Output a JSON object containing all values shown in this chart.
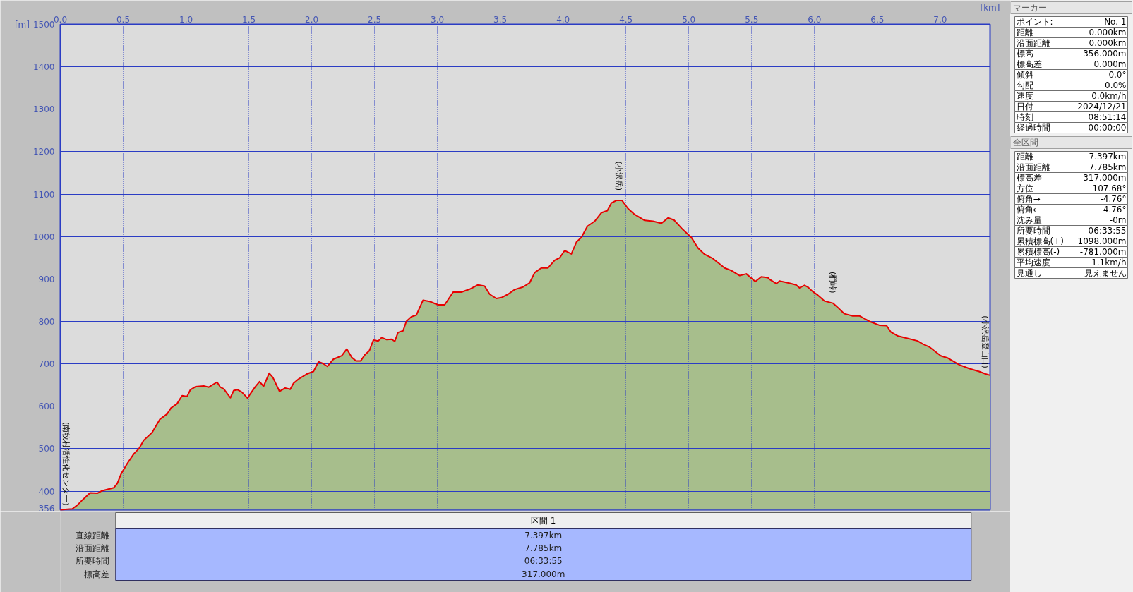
{
  "chart_data": [
    {
      "type": "area",
      "xlabel": "[km]",
      "ylabel": "[m]",
      "line_style": "solid",
      "grid": true,
      "xlim": [
        0,
        7.397
      ],
      "ylim": [
        356,
        1500
      ],
      "xticks": [
        {
          "value": 0,
          "label": "0.0"
        },
        0.5,
        {
          "value": 1,
          "label": "1.0"
        },
        1.5,
        {
          "value": 2,
          "label": "2.0"
        },
        2.5,
        {
          "value": 3,
          "label": "3.0"
        },
        3.5,
        {
          "value": 4,
          "label": "4.0"
        },
        4.5,
        {
          "value": 5,
          "label": "5.0"
        },
        5.5,
        {
          "value": 6,
          "label": "6.0"
        },
        6.5,
        {
          "value": 7,
          "label": "7.0"
        }
      ],
      "yticks": [
        356,
        400,
        500,
        600,
        700,
        800,
        900,
        1000,
        1100,
        1200,
        1300,
        1400,
        1500
      ],
      "x": [
        0,
        0.095,
        0.135,
        0.175,
        0.236,
        0.294,
        0.333,
        0.426,
        0.453,
        0.484,
        0.532,
        0.585,
        0.625,
        0.664,
        0.73,
        0.791,
        0.85,
        0.881,
        0.929,
        0.969,
        1.008,
        1.035,
        1.075,
        1.141,
        1.181,
        1.247,
        1.273,
        1.3,
        1.353,
        1.379,
        1.411,
        1.445,
        1.49,
        1.511,
        1.551,
        1.585,
        1.617,
        1.662,
        1.691,
        1.744,
        1.789,
        1.829,
        1.855,
        1.895,
        1.961,
        2.014,
        2.054,
        2.088,
        2.125,
        2.173,
        2.239,
        2.279,
        2.319,
        2.353,
        2.39,
        2.425,
        2.459,
        2.491,
        2.53,
        2.557,
        2.597,
        2.636,
        2.661,
        2.687,
        2.727,
        2.753,
        2.793,
        2.833,
        2.886,
        2.939,
        3.005,
        3.058,
        3.125,
        3.191,
        3.257,
        3.323,
        3.376,
        3.416,
        3.469,
        3.509,
        3.562,
        3.615,
        3.681,
        3.734,
        3.774,
        3.827,
        3.88,
        3.933,
        3.973,
        4.013,
        4.066,
        4.106,
        4.145,
        4.193,
        4.251,
        4.304,
        4.352,
        4.384,
        4.424,
        4.469,
        4.516,
        4.569,
        4.649,
        4.715,
        4.782,
        4.835,
        4.882,
        4.954,
        5.02,
        5.073,
        5.126,
        5.192,
        5.285,
        5.338,
        5.405,
        5.458,
        5.529,
        5.577,
        5.63,
        5.643,
        5.696,
        5.722,
        5.788,
        5.854,
        5.881,
        5.921,
        5.947,
        5.987,
        6.026,
        6.079,
        6.146,
        6.185,
        6.238,
        6.304,
        6.357,
        6.437,
        6.516,
        6.574,
        6.608,
        6.661,
        6.728,
        6.82,
        6.86,
        6.913,
        6.952,
        7.005,
        7.058,
        7.151,
        7.23,
        7.31,
        7.362,
        7.397
      ],
      "series": [
        {
          "color": "#a7be8c",
          "values": [
            356,
            358,
            367,
            379,
            396,
            395,
            401,
            408,
            418,
            441,
            465,
            488,
            500,
            520,
            538,
            569,
            582,
            596,
            606,
            625,
            623,
            639,
            646,
            648,
            645,
            657,
            645,
            641,
            620,
            637,
            639,
            633,
            619,
            629,
            646,
            658,
            647,
            678,
            668,
            635,
            643,
            640,
            654,
            664,
            676,
            682,
            705,
            701,
            694,
            711,
            719,
            735,
            715,
            707,
            707,
            722,
            731,
            756,
            754,
            762,
            757,
            758,
            753,
            774,
            778,
            800,
            811,
            815,
            850,
            847,
            839,
            839,
            869,
            869,
            876,
            886,
            883,
            864,
            854,
            856,
            864,
            875,
            881,
            891,
            915,
            926,
            926,
            944,
            950,
            967,
            959,
            987,
            998,
            1024,
            1036,
            1056,
            1061,
            1079,
            1085,
            1085,
            1066,
            1052,
            1038,
            1036,
            1031,
            1044,
            1039,
            1016,
            998,
            973,
            958,
            948,
            926,
            920,
            908,
            912,
            894,
            905,
            903,
            899,
            889,
            895,
            891,
            886,
            879,
            885,
            881,
            870,
            862,
            848,
            843,
            833,
            818,
            813,
            813,
            800,
            791,
            790,
            775,
            766,
            761,
            754,
            747,
            740,
            731,
            719,
            714,
            698,
            689,
            682,
            676,
            673
          ]
        }
      ],
      "annotations": [
        {
          "text": "(南牧村活性化センター)",
          "x": 0,
          "y": 356
        },
        {
          "text": "(小沢岳)",
          "x": 4.44,
          "y": 1085
        },
        {
          "text": "(椚峠)",
          "x": 6.146,
          "y": 843
        },
        {
          "text": "(小沢岳登山口)",
          "x": 7.397,
          "y": 673
        }
      ]
    },
    {
      "type": "other",
      "title": "マーカー",
      "annotations": [
        "ポイント:",
        "No. 1",
        "距離",
        "0.000km",
        "沿面距離",
        "0.000km",
        "標高",
        "356.000m",
        "標高差",
        "0.000m",
        "傾斜",
        "0.0°",
        "勾配",
        "0.0%",
        "速度",
        "0.0km/h",
        "日付",
        "2024/12/21",
        "時刻",
        "08:51:14",
        "経過時間",
        "00:00:00"
      ]
    },
    {
      "type": "other",
      "title": "全区間",
      "annotations": [
        "距離",
        "7.397km",
        "沿面距離",
        "7.785km",
        "標高差",
        "317.000m",
        "方位",
        "107.68°",
        "俯角→",
        "-4.76°",
        "俯角←",
        "4.76°",
        "沈み量",
        "-0m",
        "所要時間",
        "06:33:55",
        "累積標高(+)",
        "1098.000m",
        "累積標高(-)",
        "-781.000m",
        "平均速度",
        "1.1km/h",
        "見通し",
        "見えません"
      ]
    },
    {
      "type": "other",
      "title": "区間 1",
      "annotations": [
        "直線距離",
        "7.397km",
        "沿面距離",
        "7.785km",
        "所要時間",
        "06:33:55",
        "標高差",
        "317.000m"
      ]
    }
  ]
}
